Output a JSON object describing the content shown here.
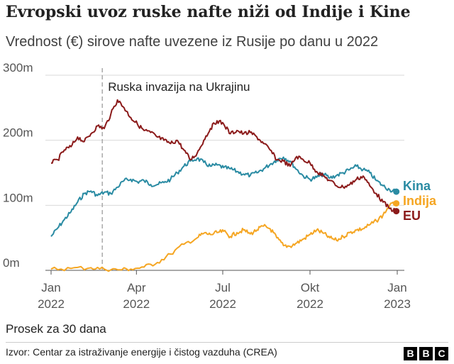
{
  "title": "Evropski uvoz ruske nafte niži od Indije i Kine",
  "subtitle": "Vrednost (€) sirove nafte uvezene iz Rusije po danu u 2022",
  "note": "Prosek za 30 dana",
  "source": "Izvor: Centar za istraživanje energije i čistog vazduha (CREA)",
  "logo": [
    "B",
    "B",
    "C"
  ],
  "chart_data": {
    "type": "line",
    "title": "Evropski uvoz ruske nafte niži od Indije i Kine",
    "subtitle": "Vrednost (€) sirove nafte uvezene iz Rusije po danu u 2022",
    "ylabel": "",
    "xlabel": "",
    "ylim": [
      0,
      300
    ],
    "yticks": [
      {
        "value": 0,
        "label": "0m"
      },
      {
        "value": 100,
        "label": "100m"
      },
      {
        "value": 200,
        "label": "200m"
      },
      {
        "value": 300,
        "label": "300m"
      }
    ],
    "xticks": [
      {
        "value": "2022-01-01",
        "label": [
          "Jan",
          "2022"
        ]
      },
      {
        "value": "2022-04-01",
        "label": [
          "Apr",
          "2022"
        ]
      },
      {
        "value": "2022-07-01",
        "label": [
          "Jul",
          "2022"
        ]
      },
      {
        "value": "2022-10-01",
        "label": [
          "Okt",
          "2022"
        ]
      },
      {
        "value": "2023-01-01",
        "label": [
          "Jan",
          "2023"
        ]
      }
    ],
    "grid": true,
    "annotation": {
      "x": "2022-02-24",
      "label": "Ruska invazija na Ukrajinu"
    },
    "series": [
      {
        "name": "Kina",
        "color": "#2a8ba3",
        "points": [
          [
            "2022-01-01",
            52
          ],
          [
            "2022-01-08",
            65
          ],
          [
            "2022-01-15",
            78
          ],
          [
            "2022-01-22",
            90
          ],
          [
            "2022-01-29",
            105
          ],
          [
            "2022-02-05",
            118
          ],
          [
            "2022-02-12",
            122
          ],
          [
            "2022-02-19",
            115
          ],
          [
            "2022-02-26",
            120
          ],
          [
            "2022-03-05",
            118
          ],
          [
            "2022-03-12",
            128
          ],
          [
            "2022-03-19",
            138
          ],
          [
            "2022-03-26",
            140
          ],
          [
            "2022-04-02",
            136
          ],
          [
            "2022-04-09",
            138
          ],
          [
            "2022-04-16",
            132
          ],
          [
            "2022-04-23",
            132
          ],
          [
            "2022-04-30",
            135
          ],
          [
            "2022-05-07",
            140
          ],
          [
            "2022-05-14",
            150
          ],
          [
            "2022-05-21",
            160
          ],
          [
            "2022-05-28",
            168
          ],
          [
            "2022-06-04",
            172
          ],
          [
            "2022-06-11",
            166
          ],
          [
            "2022-06-18",
            160
          ],
          [
            "2022-06-25",
            162
          ],
          [
            "2022-07-02",
            158
          ],
          [
            "2022-07-09",
            156
          ],
          [
            "2022-07-16",
            152
          ],
          [
            "2022-07-23",
            148
          ],
          [
            "2022-07-30",
            146
          ],
          [
            "2022-08-06",
            150
          ],
          [
            "2022-08-13",
            156
          ],
          [
            "2022-08-20",
            163
          ],
          [
            "2022-08-27",
            170
          ],
          [
            "2022-09-03",
            174
          ],
          [
            "2022-09-10",
            168
          ],
          [
            "2022-09-17",
            155
          ],
          [
            "2022-09-24",
            145
          ],
          [
            "2022-10-01",
            140
          ],
          [
            "2022-10-08",
            143
          ],
          [
            "2022-10-15",
            148
          ],
          [
            "2022-10-22",
            142
          ],
          [
            "2022-10-29",
            146
          ],
          [
            "2022-11-05",
            150
          ],
          [
            "2022-11-12",
            155
          ],
          [
            "2022-11-19",
            160
          ],
          [
            "2022-11-26",
            155
          ],
          [
            "2022-12-03",
            150
          ],
          [
            "2022-12-10",
            138
          ],
          [
            "2022-12-17",
            130
          ],
          [
            "2022-12-24",
            124
          ],
          [
            "2022-12-31",
            121
          ]
        ]
      },
      {
        "name": "Indija",
        "color": "#f5a623",
        "points": [
          [
            "2022-01-01",
            2
          ],
          [
            "2022-01-22",
            3
          ],
          [
            "2022-02-12",
            4
          ],
          [
            "2022-02-26",
            2
          ],
          [
            "2022-03-12",
            1
          ],
          [
            "2022-03-26",
            2
          ],
          [
            "2022-04-09",
            5
          ],
          [
            "2022-04-23",
            12
          ],
          [
            "2022-05-07",
            25
          ],
          [
            "2022-05-21",
            40
          ],
          [
            "2022-06-04",
            50
          ],
          [
            "2022-06-11",
            57
          ],
          [
            "2022-06-18",
            55
          ],
          [
            "2022-06-25",
            58
          ],
          [
            "2022-07-02",
            60
          ],
          [
            "2022-07-09",
            52
          ],
          [
            "2022-07-16",
            58
          ],
          [
            "2022-07-23",
            62
          ],
          [
            "2022-07-30",
            56
          ],
          [
            "2022-08-06",
            62
          ],
          [
            "2022-08-13",
            68
          ],
          [
            "2022-08-20",
            64
          ],
          [
            "2022-08-27",
            50
          ],
          [
            "2022-09-03",
            38
          ],
          [
            "2022-09-10",
            37
          ],
          [
            "2022-09-17",
            42
          ],
          [
            "2022-09-24",
            48
          ],
          [
            "2022-10-01",
            55
          ],
          [
            "2022-10-08",
            62
          ],
          [
            "2022-10-15",
            57
          ],
          [
            "2022-10-22",
            50
          ],
          [
            "2022-10-29",
            46
          ],
          [
            "2022-11-05",
            52
          ],
          [
            "2022-11-12",
            58
          ],
          [
            "2022-11-19",
            62
          ],
          [
            "2022-11-26",
            64
          ],
          [
            "2022-12-03",
            70
          ],
          [
            "2022-12-10",
            76
          ],
          [
            "2022-12-17",
            85
          ],
          [
            "2022-12-24",
            100
          ],
          [
            "2022-12-31",
            103
          ]
        ]
      },
      {
        "name": "EU",
        "color": "#8b1a1a",
        "points": [
          [
            "2022-01-01",
            165
          ],
          [
            "2022-01-08",
            170
          ],
          [
            "2022-01-15",
            185
          ],
          [
            "2022-01-22",
            190
          ],
          [
            "2022-01-29",
            205
          ],
          [
            "2022-02-05",
            198
          ],
          [
            "2022-02-12",
            210
          ],
          [
            "2022-02-19",
            222
          ],
          [
            "2022-02-26",
            218
          ],
          [
            "2022-03-05",
            240
          ],
          [
            "2022-03-12",
            262
          ],
          [
            "2022-03-19",
            250
          ],
          [
            "2022-03-26",
            235
          ],
          [
            "2022-04-02",
            225
          ],
          [
            "2022-04-09",
            215
          ],
          [
            "2022-04-16",
            212
          ],
          [
            "2022-04-23",
            205
          ],
          [
            "2022-04-30",
            200
          ],
          [
            "2022-05-07",
            195
          ],
          [
            "2022-05-14",
            200
          ],
          [
            "2022-05-21",
            185
          ],
          [
            "2022-05-28",
            170
          ],
          [
            "2022-06-04",
            180
          ],
          [
            "2022-06-11",
            200
          ],
          [
            "2022-06-18",
            218
          ],
          [
            "2022-06-25",
            230
          ],
          [
            "2022-07-02",
            225
          ],
          [
            "2022-07-09",
            210
          ],
          [
            "2022-07-16",
            215
          ],
          [
            "2022-07-23",
            210
          ],
          [
            "2022-07-30",
            212
          ],
          [
            "2022-08-06",
            205
          ],
          [
            "2022-08-13",
            195
          ],
          [
            "2022-08-20",
            185
          ],
          [
            "2022-08-27",
            170
          ],
          [
            "2022-09-03",
            168
          ],
          [
            "2022-09-10",
            160
          ],
          [
            "2022-09-17",
            175
          ],
          [
            "2022-09-24",
            170
          ],
          [
            "2022-10-01",
            165
          ],
          [
            "2022-10-08",
            152
          ],
          [
            "2022-10-15",
            145
          ],
          [
            "2022-10-22",
            138
          ],
          [
            "2022-10-29",
            130
          ],
          [
            "2022-11-05",
            128
          ],
          [
            "2022-11-12",
            132
          ],
          [
            "2022-11-19",
            140
          ],
          [
            "2022-11-26",
            145
          ],
          [
            "2022-12-03",
            130
          ],
          [
            "2022-12-10",
            118
          ],
          [
            "2022-12-17",
            105
          ],
          [
            "2022-12-24",
            95
          ],
          [
            "2022-12-31",
            91
          ]
        ]
      }
    ]
  }
}
